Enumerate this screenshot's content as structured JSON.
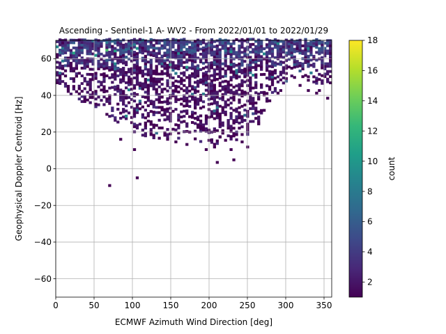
{
  "chart_data": {
    "type": "heatmap",
    "title": "Ascending - Sentinel-1 A- WV2 - From 2022/01/01 to 2022/01/29",
    "xlabel": "ECMWF Azimuth Wind Direction [deg]",
    "ylabel": "Geophysical Doppler Centroid [Hz]",
    "xlim": [
      0,
      360
    ],
    "ylim": [
      -70,
      70
    ],
    "xticks": [
      0,
      50,
      100,
      150,
      200,
      250,
      300,
      350
    ],
    "yticks": [
      -60,
      -40,
      -20,
      0,
      20,
      40,
      60
    ],
    "grid": true,
    "bin_size": {
      "x": 3.6,
      "y": 1.4
    },
    "colorbar": {
      "label": "count",
      "min": 1,
      "max": 18,
      "ticks": [
        2,
        4,
        6,
        8,
        10,
        12,
        14,
        16,
        18
      ],
      "colormap": "viridis"
    },
    "colormap_stops": [
      "#440154",
      "#482878",
      "#3e4989",
      "#31688e",
      "#26828e",
      "#1f9e89",
      "#35b779",
      "#6ece58",
      "#b5de2b",
      "#fde725"
    ],
    "envelope": [
      [
        0,
        45
      ],
      [
        10,
        44
      ],
      [
        20,
        40
      ],
      [
        30,
        36
      ],
      [
        40,
        36
      ],
      [
        50,
        32
      ],
      [
        60,
        31
      ],
      [
        70,
        28
      ],
      [
        80,
        25
      ],
      [
        90,
        23
      ],
      [
        100,
        20
      ],
      [
        110,
        18
      ],
      [
        120,
        17
      ],
      [
        130,
        16
      ],
      [
        140,
        16
      ],
      [
        150,
        17
      ],
      [
        160,
        16
      ],
      [
        170,
        17
      ],
      [
        180,
        16
      ],
      [
        190,
        14
      ],
      [
        200,
        12
      ],
      [
        210,
        13
      ],
      [
        220,
        15
      ],
      [
        230,
        14
      ],
      [
        240,
        16
      ],
      [
        250,
        18
      ],
      [
        260,
        22
      ],
      [
        270,
        28
      ],
      [
        280,
        38
      ],
      [
        290,
        44
      ],
      [
        300,
        47
      ],
      [
        310,
        49
      ],
      [
        320,
        50
      ],
      [
        330,
        48
      ],
      [
        340,
        46
      ],
      [
        350,
        44
      ],
      [
        360,
        44
      ]
    ],
    "isolated_cells": [
      [
        70,
        -8.4
      ],
      [
        105,
        -5.6
      ],
      [
        85,
        15.4
      ],
      [
        102,
        10.5
      ],
      [
        145,
        15.4
      ],
      [
        155,
        14
      ],
      [
        172,
        12.6
      ],
      [
        195,
        9.8
      ],
      [
        206,
        11.2
      ],
      [
        212,
        2.8
      ],
      [
        215,
        16.8
      ],
      [
        227,
        10.5
      ],
      [
        233,
        4.9
      ],
      [
        243,
        14
      ],
      [
        250,
        11.2
      ],
      [
        265,
        24.5
      ],
      [
        268,
        30.8
      ],
      [
        280,
        36.4
      ],
      [
        288,
        40.6
      ],
      [
        292,
        42
      ],
      [
        318,
        44.8
      ],
      [
        330,
        42
      ],
      [
        340,
        40.6
      ],
      [
        345,
        42
      ],
      [
        355,
        37.8
      ],
      [
        358,
        46.2
      ],
      [
        328,
        47.6
      ]
    ]
  }
}
